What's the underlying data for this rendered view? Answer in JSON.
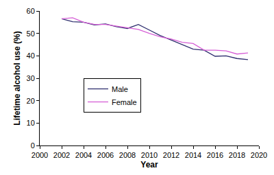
{
  "chart_data": {
    "type": "line",
    "x_label": "Year",
    "y_label": "Lifetime alcohol use (%)",
    "x": [
      2002,
      2003,
      2004,
      2005,
      2006,
      2007,
      2008,
      2009,
      2010,
      2011,
      2012,
      2013,
      2014,
      2015,
      2016,
      2017,
      2018,
      2019
    ],
    "series": [
      {
        "name": "Male",
        "color": "#2e2e6e",
        "values": [
          56.5,
          55.2,
          55.0,
          53.8,
          54.2,
          53.0,
          52.2,
          54.0,
          51.5,
          49.0,
          47.0,
          45.0,
          43.0,
          42.5,
          39.8,
          40.0,
          38.8,
          38.3
        ]
      },
      {
        "name": "Female",
        "color": "#d65fd6",
        "values": [
          56.5,
          57.0,
          55.0,
          54.0,
          54.0,
          53.2,
          52.5,
          51.8,
          50.0,
          48.5,
          47.5,
          46.0,
          45.5,
          42.5,
          42.5,
          42.2,
          40.8,
          41.3
        ]
      }
    ],
    "xlim": [
      2000,
      2020
    ],
    "xticks": [
      2000,
      2002,
      2004,
      2006,
      2008,
      2010,
      2012,
      2014,
      2016,
      2018,
      2020
    ],
    "ylim": [
      0,
      60
    ],
    "yticks": [
      0,
      10,
      20,
      30,
      40,
      50,
      60
    ],
    "grid": false,
    "legend": "middle left"
  }
}
